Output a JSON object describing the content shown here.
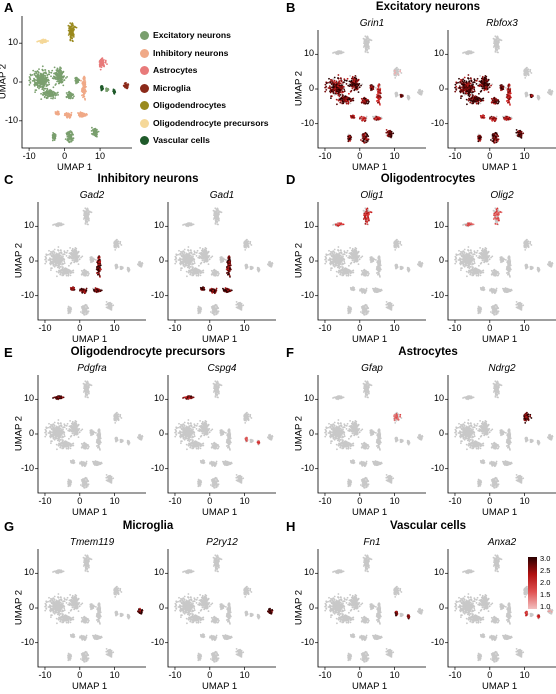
{
  "panels": [
    {
      "letter": "A"
    },
    {
      "letter": "B",
      "title": "Excitatory neurons",
      "genes": [
        "Grin1",
        "Rbfox3"
      ]
    },
    {
      "letter": "C",
      "title": "Inhibitory neurons",
      "genes": [
        "Gad2",
        "Gad1"
      ]
    },
    {
      "letter": "D",
      "title": "Oligodentrocytes",
      "genes": [
        "Olig1",
        "Olig2"
      ]
    },
    {
      "letter": "E",
      "title": "Oligodendrocyte precursors",
      "genes": [
        "Pdgfra",
        "Cspg4"
      ]
    },
    {
      "letter": "F",
      "title": "Astrocytes",
      "genes": [
        "Gfap",
        "Ndrg2"
      ]
    },
    {
      "letter": "G",
      "title": "Microglia",
      "genes": [
        "Tmem119",
        "P2ry12"
      ]
    },
    {
      "letter": "H",
      "title": "Vascular cells",
      "genes": [
        "Fn1",
        "Anxa2"
      ]
    }
  ],
  "chart_data": {
    "type": "scatter",
    "xlabel": "UMAP 1",
    "ylabel": "UMAP 2",
    "xticks": [
      -10,
      0,
      10
    ],
    "yticks": [
      -10,
      0,
      10
    ],
    "xlim": [
      -12,
      19
    ],
    "ylim": [
      -17,
      17
    ],
    "legend": [
      {
        "name": "Excitatory neurons",
        "color": "#7a9f6e"
      },
      {
        "name": "Inhibitory neurons",
        "color": "#f0a987"
      },
      {
        "name": "Astrocytes",
        "color": "#e87a7a"
      },
      {
        "name": "Microglia",
        "color": "#8b2a1a"
      },
      {
        "name": "Oligodendrocytes",
        "color": "#9a8a1e"
      },
      {
        "name": "Oligodendrocyte precursors",
        "color": "#f5d899"
      },
      {
        "name": "Vascular cells",
        "color": "#1f5a2a"
      }
    ],
    "colorbar": {
      "ticks": [
        "3.0",
        "2.5",
        "2.0",
        "1.5",
        "1.0"
      ],
      "min": 1.0,
      "max": 3.0,
      "low_color": "#f2c0c0",
      "high_color": "#2a0000"
    },
    "clusters": [
      {
        "type": "Excitatory neurons",
        "x": -6.5,
        "y": 0.5,
        "sx": 2.6,
        "sy": 2.3
      },
      {
        "type": "Excitatory neurons",
        "x": -1.5,
        "y": 1.5,
        "sx": 1.4,
        "sy": 2.0
      },
      {
        "type": "Excitatory neurons",
        "x": -4,
        "y": -3,
        "sx": 2.0,
        "sy": 1.0
      },
      {
        "type": "Excitatory neurons",
        "x": 1.5,
        "y": -3.5,
        "sx": 0.9,
        "sy": 0.7
      },
      {
        "type": "Excitatory neurons",
        "x": 1.5,
        "y": -14,
        "sx": 0.9,
        "sy": 1.3
      },
      {
        "type": "Excitatory neurons",
        "x": -3,
        "y": -14,
        "sx": 0.5,
        "sy": 0.9
      },
      {
        "type": "Excitatory neurons",
        "x": 8.5,
        "y": -13,
        "sx": 0.8,
        "sy": 1.0
      },
      {
        "type": "Excitatory neurons",
        "x": 3.5,
        "y": 0.5,
        "sx": 0.5,
        "sy": 0.6
      },
      {
        "type": "Excitatory neurons",
        "x": 12,
        "y": -2,
        "sx": 0.3,
        "sy": 0.4
      },
      {
        "type": "Inhibitory neurons",
        "x": 5.5,
        "y": -1.5,
        "sx": 0.6,
        "sy": 2.5
      },
      {
        "type": "Inhibitory neurons",
        "x": 5,
        "y": -8.5,
        "sx": 1.0,
        "sy": 0.6
      },
      {
        "type": "Inhibitory neurons",
        "x": 1,
        "y": -8.5,
        "sx": 0.9,
        "sy": 0.6
      },
      {
        "type": "Inhibitory neurons",
        "x": -2,
        "y": -8,
        "sx": 0.5,
        "sy": 0.5
      },
      {
        "type": "Astrocytes",
        "x": 10.5,
        "y": 5,
        "sx": 0.8,
        "sy": 1.2
      },
      {
        "type": "Microglia",
        "x": 17.5,
        "y": -1,
        "sx": 0.7,
        "sy": 0.6
      },
      {
        "type": "Oligodendrocytes",
        "x": 2,
        "y": 13,
        "sx": 0.8,
        "sy": 1.9
      },
      {
        "type": "Oligodendrocyte precursors",
        "x": -6,
        "y": 10.5,
        "sx": 1.0,
        "sy": 0.4
      },
      {
        "type": "Vascular cells",
        "x": 10.5,
        "y": -1.5,
        "sx": 0.3,
        "sy": 0.5
      },
      {
        "type": "Vascular cells",
        "x": 14,
        "y": -2.5,
        "sx": 0.2,
        "sy": 0.4
      }
    ],
    "expression": {
      "Grin1": {
        "Excitatory neurons": 0.85,
        "Inhibitory neurons": 0.55,
        "Astrocytes": 0.05
      },
      "Rbfox3": {
        "Excitatory neurons": 0.9,
        "Inhibitory neurons": 0.6
      },
      "Gad2": {
        "Inhibitory neurons": 0.85
      },
      "Gad1": {
        "Inhibitory neurons": 0.9
      },
      "Olig1": {
        "Oligodendrocytes": 0.5,
        "Oligodendrocyte precursors": 0.4
      },
      "Olig2": {
        "Oligodendrocytes": 0.35,
        "Oligodendrocyte precursors": 0.35
      },
      "Pdgfra": {
        "Oligodendrocyte precursors": 0.95
      },
      "Cspg4": {
        "Oligodendrocyte precursors": 0.7,
        "Vascular cells": 0.4
      },
      "Gfap": {
        "Astrocytes": 0.3
      },
      "Ndrg2": {
        "Astrocytes": 0.95
      },
      "Tmem119": {
        "Microglia": 0.9
      },
      "P2ry12": {
        "Microglia": 0.95
      },
      "Fn1": {
        "Vascular cells": 0.8
      },
      "Anxa2": {
        "Vascular cells": 0.5,
        "Microglia": 0.1
      }
    }
  }
}
